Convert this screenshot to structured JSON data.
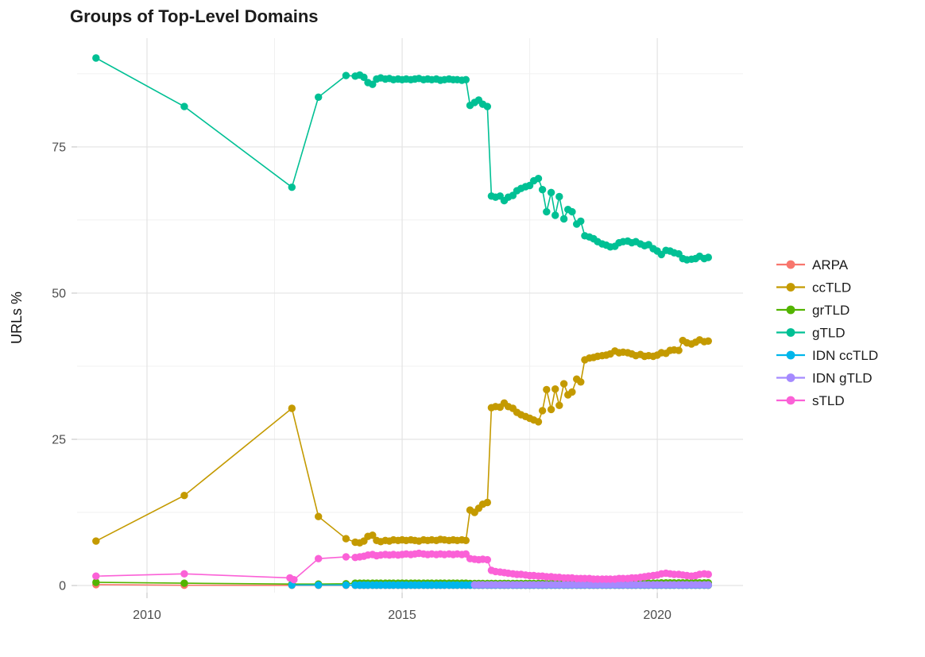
{
  "page": {
    "background": "#ffffff"
  },
  "chart_data": {
    "type": "line",
    "title": "Groups of Top-Level Domains",
    "ylabel": "URLs %",
    "xlabel": "",
    "legend_position": "right",
    "grid": true,
    "x_range": [
      2008.63,
      2021.68
    ],
    "y_range": [
      -1.22,
      93.6
    ],
    "x_ticks": [
      2010,
      2015,
      2020
    ],
    "x_minor_gridlines": [
      2012.5,
      2017.5
    ],
    "y_ticks": [
      0,
      25,
      50,
      75
    ],
    "y_minor_gridlines": [
      12.5,
      37.5,
      62.5,
      87.5
    ],
    "point_radius": 4.7,
    "x_monthly": [
      2014.08,
      2014.17,
      2014.25,
      2014.33,
      2014.42,
      2014.5,
      2014.58,
      2014.67,
      2014.75,
      2014.83,
      2014.92,
      2015,
      2015.08,
      2015.17,
      2015.25,
      2015.33,
      2015.42,
      2015.5,
      2015.58,
      2015.67,
      2015.75,
      2015.83,
      2015.92,
      2016,
      2016.08,
      2016.17,
      2016.25,
      2016.33,
      2016.42,
      2016.5,
      2016.58,
      2016.67,
      2016.75,
      2016.83,
      2016.92,
      2017,
      2017.08,
      2017.17,
      2017.25,
      2017.33,
      2017.42,
      2017.5,
      2017.58,
      2017.67,
      2017.75,
      2017.83,
      2017.92,
      2018,
      2018.08,
      2018.17,
      2018.25,
      2018.33,
      2018.42,
      2018.5,
      2018.58,
      2018.67,
      2018.75,
      2018.83,
      2018.92,
      2019,
      2019.08,
      2019.17,
      2019.25,
      2019.33,
      2019.42,
      2019.5,
      2019.58,
      2019.67,
      2019.75,
      2019.83,
      2019.92,
      2020,
      2020.08,
      2020.17,
      2020.25,
      2020.33,
      2020.42,
      2020.5,
      2020.58,
      2020.67,
      2020.75,
      2020.83,
      2020.92,
      2021
    ],
    "series": [
      {
        "name": "ARPA",
        "color": "#F8766D",
        "head_x": [
          2009.0,
          2010.73,
          2012.84,
          2013.36,
          2013.9
        ],
        "head_y": [
          0.15,
          0.05,
          0.03,
          0.03,
          0.03
        ],
        "monthly_y": [
          0.03,
          0.03,
          0.03,
          0.03,
          0.03,
          0.03,
          0.03,
          0.03,
          0.03,
          0.03,
          0.03,
          0.03,
          0.03,
          0.03,
          0.03,
          0.03,
          0.03,
          0.03,
          0.03,
          0.03,
          0.03,
          0.03,
          0.03,
          0.03,
          0.03,
          0.03,
          0.03,
          0.03,
          0.03,
          0.03,
          0.03,
          0.03,
          0.03,
          0.03,
          0.03,
          0.03,
          0.03,
          0.03,
          0.03,
          0.03,
          0.03,
          0.03,
          0.03,
          0.03,
          0.03,
          0.03,
          0.03,
          0.03,
          0.03,
          0.03,
          0.03,
          0.03,
          0.03,
          0.03,
          0.03,
          0.03,
          0.03,
          0.03,
          0.03,
          0.03,
          0.03,
          0.03,
          0.03,
          0.03,
          0.03,
          0.03,
          0.03,
          0.03,
          0.03,
          0.03,
          0.03,
          0.03,
          0.03,
          0.03,
          0.03,
          0.03,
          0.03,
          0.03,
          0.03,
          0.03,
          0.03,
          0.03,
          0.03,
          0.03
        ]
      },
      {
        "name": "ccTLD",
        "color": "#C49A00",
        "head_x": [
          2009.0,
          2010.73,
          2012.84,
          2013.36,
          2013.9
        ],
        "head_y": [
          7.6,
          15.4,
          30.3,
          11.8,
          8.0
        ],
        "monthly_y": [
          7.4,
          7.3,
          7.6,
          8.4,
          8.6,
          7.7,
          7.5,
          7.7,
          7.6,
          7.8,
          7.7,
          7.8,
          7.7,
          7.8,
          7.7,
          7.6,
          7.8,
          7.7,
          7.8,
          7.7,
          7.9,
          7.8,
          7.7,
          7.8,
          7.7,
          7.8,
          7.7,
          12.9,
          12.5,
          13.2,
          13.9,
          14.2,
          30.4,
          30.6,
          30.5,
          31.2,
          30.6,
          30.3,
          29.6,
          29.2,
          28.9,
          28.6,
          28.3,
          28.0,
          29.9,
          33.5,
          30.1,
          33.6,
          30.8,
          34.5,
          32.6,
          33.1,
          35.3,
          34.8,
          38.6,
          38.9,
          39.0,
          39.2,
          39.3,
          39.4,
          39.6,
          40.1,
          39.8,
          39.9,
          39.8,
          39.6,
          39.3,
          39.5,
          39.2,
          39.3,
          39.2,
          39.4,
          39.8,
          39.7,
          40.2,
          40.3,
          40.2,
          41.9,
          41.5,
          41.3,
          41.6,
          42.0,
          41.7,
          41.8
        ]
      },
      {
        "name": "grTLD",
        "color": "#53B400",
        "head_x": [
          2009.0,
          2010.73,
          2012.84,
          2013.36,
          2013.9
        ],
        "head_y": [
          0.55,
          0.4,
          0.25,
          0.25,
          0.3
        ],
        "monthly_y": [
          0.4,
          0.4,
          0.4,
          0.4,
          0.4,
          0.4,
          0.4,
          0.4,
          0.4,
          0.4,
          0.4,
          0.4,
          0.4,
          0.4,
          0.4,
          0.4,
          0.4,
          0.4,
          0.4,
          0.4,
          0.4,
          0.4,
          0.4,
          0.4,
          0.4,
          0.4,
          0.4,
          0.35,
          0.35,
          0.35,
          0.35,
          0.35,
          0.35,
          0.35,
          0.35,
          0.35,
          0.35,
          0.35,
          0.35,
          0.35,
          0.35,
          0.35,
          0.35,
          0.35,
          0.35,
          0.35,
          0.35,
          0.35,
          0.35,
          0.35,
          0.35,
          0.35,
          0.35,
          0.35,
          0.4,
          0.4,
          0.4,
          0.4,
          0.4,
          0.4,
          0.4,
          0.4,
          0.4,
          0.4,
          0.4,
          0.4,
          0.4,
          0.4,
          0.4,
          0.4,
          0.4,
          0.4,
          0.45,
          0.45,
          0.45,
          0.45,
          0.45,
          0.45,
          0.45,
          0.45,
          0.45,
          0.45,
          0.45,
          0.45
        ]
      },
      {
        "name": "gTLD",
        "color": "#00C094",
        "head_x": [
          2009.0,
          2010.73,
          2012.84,
          2013.36,
          2013.9
        ],
        "head_y": [
          90.2,
          81.9,
          68.1,
          83.5,
          87.2
        ],
        "monthly_y": [
          87.1,
          87.3,
          86.9,
          86.0,
          85.7,
          86.6,
          86.8,
          86.6,
          86.7,
          86.5,
          86.6,
          86.5,
          86.6,
          86.5,
          86.6,
          86.7,
          86.5,
          86.6,
          86.5,
          86.6,
          86.4,
          86.5,
          86.6,
          86.5,
          86.5,
          86.4,
          86.5,
          82.1,
          82.6,
          83.0,
          82.3,
          81.9,
          66.6,
          66.4,
          66.6,
          65.8,
          66.4,
          66.7,
          67.5,
          67.9,
          68.2,
          68.4,
          69.2,
          69.6,
          67.7,
          63.9,
          67.2,
          63.3,
          66.5,
          62.7,
          64.3,
          63.9,
          61.8,
          62.3,
          59.8,
          59.6,
          59.3,
          58.8,
          58.4,
          58.2,
          57.9,
          58.0,
          58.6,
          58.8,
          58.9,
          58.6,
          58.8,
          58.4,
          58.1,
          58.3,
          57.6,
          57.2,
          56.6,
          57.3,
          57.2,
          56.9,
          56.7,
          55.9,
          55.7,
          55.8,
          55.9,
          56.3,
          55.9,
          56.1
        ]
      },
      {
        "name": "IDN ccTLD",
        "color": "#00B6EB",
        "head_x": [
          2012.84,
          2013.36,
          2013.9
        ],
        "head_y": [
          0.08,
          0.08,
          0.08
        ],
        "monthly_y": [
          0.07,
          0.07,
          0.07,
          0.07,
          0.07,
          0.07,
          0.07,
          0.07,
          0.07,
          0.07,
          0.07,
          0.07,
          0.07,
          0.07,
          0.07,
          0.07,
          0.07,
          0.07,
          0.07,
          0.07,
          0.07,
          0.07,
          0.07,
          0.07,
          0.07,
          0.07,
          0.07,
          0.07,
          0.07,
          0.07,
          0.07,
          0.07,
          0.07,
          0.07,
          0.07,
          0.07,
          0.07,
          0.07,
          0.07,
          0.07,
          0.07,
          0.07,
          0.07,
          0.07,
          0.07,
          0.07,
          0.07,
          0.07,
          0.07,
          0.07,
          0.07,
          0.07,
          0.07,
          0.07,
          0.07,
          0.07,
          0.07,
          0.07,
          0.07,
          0.07,
          0.07,
          0.07,
          0.07,
          0.07,
          0.07,
          0.07,
          0.07,
          0.07,
          0.07,
          0.07,
          0.07,
          0.07,
          0.07,
          0.07,
          0.07,
          0.07,
          0.07,
          0.07,
          0.07,
          0.07,
          0.07,
          0.07,
          0.07,
          0.07
        ]
      },
      {
        "name": "IDN gTLD",
        "color": "#A58AFF",
        "head_x": [],
        "head_y": [],
        "monthly_y": [
          0.12,
          0.12,
          0.12,
          0.12,
          0.12,
          0.12,
          0.12,
          0.12,
          0.12,
          0.12,
          0.12,
          0.12,
          0.12,
          0.12,
          0.12,
          0.12,
          0.12,
          0.12,
          0.12,
          0.12,
          0.12,
          0.12,
          0.12,
          0.12,
          0.12,
          0.12,
          0.12,
          0.12,
          0.12,
          0.12,
          0.12,
          0.12,
          0.12,
          0.12,
          0.12,
          0.12,
          0.12,
          0.12,
          0.12,
          0.12,
          0.12,
          0.12,
          0.12,
          0.12,
          0.12,
          0.12,
          0.12,
          0.12,
          0.12,
          0.12,
          0.12,
          0.12,
          0.12,
          0.12,
          0.12,
          0.12
        ]
      },
      {
        "name": "sTLD",
        "color": "#FB61D7",
        "head_x": [
          2009.0,
          2010.73,
          2012.8,
          2012.88,
          2013.36,
          2013.9
        ],
        "head_y": [
          1.6,
          2.0,
          1.3,
          1.0,
          4.6,
          4.9
        ],
        "monthly_y": [
          4.8,
          4.9,
          5.0,
          5.2,
          5.3,
          5.1,
          5.2,
          5.3,
          5.2,
          5.3,
          5.2,
          5.3,
          5.4,
          5.3,
          5.4,
          5.5,
          5.4,
          5.3,
          5.4,
          5.3,
          5.4,
          5.3,
          5.4,
          5.3,
          5.4,
          5.3,
          5.4,
          4.6,
          4.5,
          4.4,
          4.5,
          4.4,
          2.6,
          2.4,
          2.3,
          2.2,
          2.1,
          2.0,
          1.9,
          1.9,
          1.8,
          1.7,
          1.7,
          1.6,
          1.6,
          1.5,
          1.5,
          1.4,
          1.4,
          1.3,
          1.3,
          1.3,
          1.2,
          1.2,
          1.2,
          1.2,
          1.1,
          1.1,
          1.1,
          1.1,
          1.1,
          1.1,
          1.2,
          1.2,
          1.2,
          1.3,
          1.3,
          1.4,
          1.5,
          1.6,
          1.7,
          1.8,
          2.0,
          2.1,
          2.0,
          1.9,
          1.9,
          1.8,
          1.7,
          1.6,
          1.7,
          1.9,
          2.0,
          1.9
        ]
      }
    ]
  }
}
